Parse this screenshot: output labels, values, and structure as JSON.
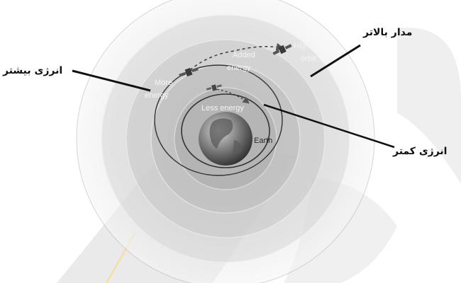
{
  "labels_en": {
    "more_energy_line1": "More",
    "more_energy_line2": "energy",
    "added_energy_line1": "Added",
    "added_energy_line2": "energy",
    "higher_orbit_line1": "Higher",
    "higher_orbit_line2": "orbit",
    "less_energy": "Less energy",
    "earth": "Earth"
  },
  "labels_fa": {
    "higher_orbit": "مدار بالاتر",
    "more_energy": "انرژی بیشتر",
    "less_energy": "انرژی کمتر"
  },
  "colors": {
    "watermark": "#d7d7d7",
    "accent_line": "#f0c040",
    "pointer": "#111111"
  }
}
